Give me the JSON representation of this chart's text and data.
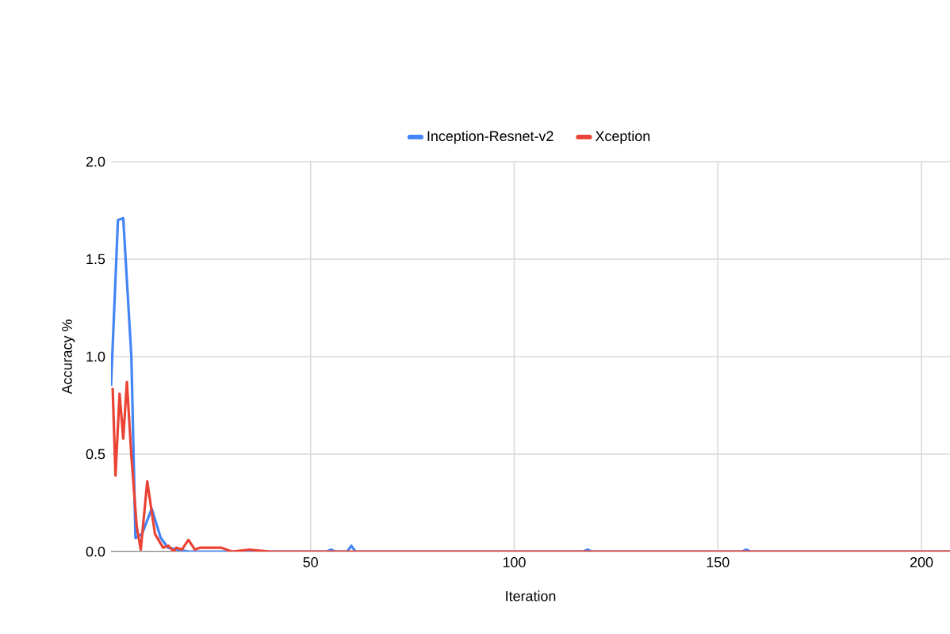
{
  "chart_data": {
    "type": "line",
    "xlabel": "Iteration",
    "ylabel": "Accuracy %",
    "xlim": [
      1,
      207
    ],
    "xticks": [
      50,
      100,
      150,
      200
    ],
    "ylim": [
      0,
      2
    ],
    "yticks": [
      {
        "value": 0,
        "label": "0.0"
      },
      {
        "value": 0.5,
        "label": "0.5"
      },
      {
        "value": 1,
        "label": "1.0"
      },
      {
        "value": 1.5,
        "label": "1.5"
      },
      {
        "value": 2,
        "label": "2.0"
      }
    ],
    "grid": true,
    "legend": "top",
    "marker": "none",
    "line_style": "solid",
    "series": [
      {
        "name": "Inception-Resnet-v2",
        "color": "#4285f4",
        "x": [
          1,
          2.7,
          4,
          6,
          7,
          8.6,
          11,
          13.2,
          15,
          20,
          54,
          55,
          56,
          59,
          60,
          61,
          117,
          118,
          119,
          156,
          157,
          158,
          207
        ],
        "values": [
          0.85,
          1.7,
          1.71,
          1.0,
          0.07,
          0.09,
          0.22,
          0.07,
          0.02,
          0,
          0,
          0.01,
          0,
          0,
          0.03,
          0,
          0,
          0.01,
          0,
          0,
          0.01,
          0,
          0
        ]
      },
      {
        "name": "Xception",
        "color": "#ea4335",
        "x": [
          1.4,
          2.1,
          3.1,
          4,
          4.9,
          6,
          7.3,
          8.3,
          9.9,
          11.8,
          13.8,
          15.1,
          16.4,
          17,
          18.4,
          20,
          21.6,
          22.9,
          28,
          30.7,
          35,
          40,
          207
        ],
        "values": [
          0.84,
          0.39,
          0.81,
          0.58,
          0.87,
          0.49,
          0.13,
          0.01,
          0.36,
          0.09,
          0.02,
          0.03,
          0,
          0.02,
          0.01,
          0.06,
          0.01,
          0.02,
          0.02,
          0,
          0.01,
          0,
          0
        ]
      }
    ]
  }
}
